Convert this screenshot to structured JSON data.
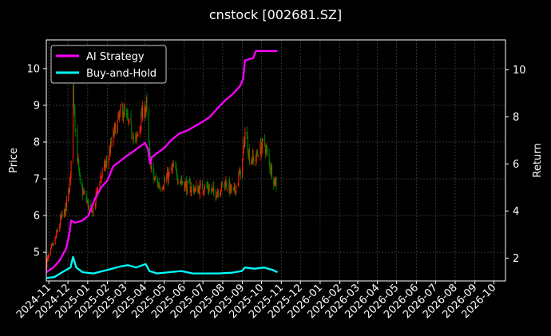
{
  "chart_data": {
    "type": "line",
    "title": "cnstock [002681.SZ]",
    "ylabel": "Price",
    "ylabel_right": "Return",
    "ylim": [
      4.22,
      10.78
    ],
    "ylim_right": [
      1.03,
      11.27
    ],
    "yticks": [
      5,
      6,
      7,
      8,
      9,
      10
    ],
    "yticks_right": [
      2,
      4,
      6,
      8,
      10
    ],
    "xlim": [
      "2024-10-28",
      "2026-10-19"
    ],
    "xticks": [
      "2024-11",
      "2024-12",
      "2025-01",
      "2025-02",
      "2025-03",
      "2025-04",
      "2025-05",
      "2025-06",
      "2025-07",
      "2025-08",
      "2025-09",
      "2025-10",
      "2025-11",
      "2025-12",
      "2026-01",
      "2026-02",
      "2026-03",
      "2026-04",
      "2026-05",
      "2026-06",
      "2026-07",
      "2026-08",
      "2026-09",
      "2026-10"
    ],
    "grid": true,
    "legend_position": "top-left",
    "background": "#000000",
    "candles": {
      "up_color": "#ff2200",
      "down_color": "#008800",
      "price_path": [
        [
          "2024-10-28",
          4.7
        ],
        [
          "2024-11-10",
          5.3
        ],
        [
          "2024-11-20",
          5.9
        ],
        [
          "2024-11-28",
          6.2
        ],
        [
          "2024-12-05",
          7.0
        ],
        [
          "2024-12-09",
          9.5
        ],
        [
          "2024-12-14",
          8.0
        ],
        [
          "2024-12-20",
          6.8
        ],
        [
          "2024-12-28",
          6.5
        ],
        [
          "2025-01-08",
          6.0
        ],
        [
          "2025-01-20",
          7.0
        ],
        [
          "2025-02-01",
          7.5
        ],
        [
          "2025-02-12",
          8.3
        ],
        [
          "2025-02-24",
          8.9
        ],
        [
          "2025-03-06",
          8.5
        ],
        [
          "2025-03-18",
          8.0
        ],
        [
          "2025-03-28",
          8.8
        ],
        [
          "2025-04-03",
          9.0
        ],
        [
          "2025-04-08",
          7.6
        ],
        [
          "2025-04-15",
          7.0
        ],
        [
          "2025-04-25",
          6.8
        ],
        [
          "2025-05-05",
          7.0
        ],
        [
          "2025-05-15",
          7.3
        ],
        [
          "2025-05-25",
          7.0
        ],
        [
          "2025-06-05",
          6.8
        ],
        [
          "2025-06-20",
          6.7
        ],
        [
          "2025-07-05",
          6.8
        ],
        [
          "2025-07-20",
          6.6
        ],
        [
          "2025-08-05",
          6.9
        ],
        [
          "2025-08-18",
          6.6
        ],
        [
          "2025-08-31",
          7.3
        ],
        [
          "2025-09-05",
          8.3
        ],
        [
          "2025-09-12",
          7.6
        ],
        [
          "2025-09-20",
          7.5
        ],
        [
          "2025-09-28",
          7.8
        ],
        [
          "2025-10-05",
          8.0
        ],
        [
          "2025-10-12",
          7.5
        ],
        [
          "2025-10-20",
          7.0
        ],
        [
          "2025-10-26",
          6.8
        ]
      ]
    },
    "series": [
      {
        "name": "AI Strategy",
        "color": "#ff00ff",
        "axis": "right",
        "points": [
          [
            "2024-10-28",
            1.4
          ],
          [
            "2024-11-08",
            1.6
          ],
          [
            "2024-11-18",
            1.9
          ],
          [
            "2024-11-28",
            2.4
          ],
          [
            "2024-12-03",
            3.0
          ],
          [
            "2024-12-06",
            3.6
          ],
          [
            "2024-12-12",
            3.5
          ],
          [
            "2024-12-24",
            3.6
          ],
          [
            "2025-01-02",
            3.8
          ],
          [
            "2025-01-12",
            4.5
          ],
          [
            "2025-01-22",
            5.0
          ],
          [
            "2025-02-01",
            5.3
          ],
          [
            "2025-02-10",
            5.9
          ],
          [
            "2025-02-20",
            6.1
          ],
          [
            "2025-03-01",
            6.3
          ],
          [
            "2025-03-12",
            6.5
          ],
          [
            "2025-03-22",
            6.7
          ],
          [
            "2025-04-01",
            6.9
          ],
          [
            "2025-04-06",
            6.6
          ],
          [
            "2025-04-09",
            6.0
          ],
          [
            "2025-04-12",
            6.3
          ],
          [
            "2025-04-22",
            6.5
          ],
          [
            "2025-05-02",
            6.7
          ],
          [
            "2025-05-12",
            7.0
          ],
          [
            "2025-05-25",
            7.3
          ],
          [
            "2025-06-05",
            7.4
          ],
          [
            "2025-06-18",
            7.6
          ],
          [
            "2025-07-01",
            7.8
          ],
          [
            "2025-07-12",
            8.0
          ],
          [
            "2025-07-25",
            8.4
          ],
          [
            "2025-08-05",
            8.7
          ],
          [
            "2025-08-18",
            9.0
          ],
          [
            "2025-08-28",
            9.3
          ],
          [
            "2025-09-02",
            9.6
          ],
          [
            "2025-09-05",
            10.4
          ],
          [
            "2025-09-18",
            10.5
          ],
          [
            "2025-09-22",
            10.8
          ],
          [
            "2025-10-26",
            10.8
          ]
        ]
      },
      {
        "name": "Buy-and-Hold",
        "color": "#00ffff",
        "axis": "right",
        "points": [
          [
            "2024-10-28",
            1.15
          ],
          [
            "2024-11-10",
            1.2
          ],
          [
            "2024-11-25",
            1.45
          ],
          [
            "2024-12-05",
            1.6
          ],
          [
            "2024-12-09",
            2.05
          ],
          [
            "2024-12-14",
            1.6
          ],
          [
            "2024-12-24",
            1.4
          ],
          [
            "2025-01-10",
            1.35
          ],
          [
            "2025-01-25",
            1.45
          ],
          [
            "2025-02-08",
            1.55
          ],
          [
            "2025-02-22",
            1.65
          ],
          [
            "2025-03-05",
            1.7
          ],
          [
            "2025-03-18",
            1.6
          ],
          [
            "2025-04-02",
            1.75
          ],
          [
            "2025-04-08",
            1.45
          ],
          [
            "2025-04-20",
            1.35
          ],
          [
            "2025-05-08",
            1.4
          ],
          [
            "2025-05-28",
            1.45
          ],
          [
            "2025-06-15",
            1.35
          ],
          [
            "2025-07-05",
            1.35
          ],
          [
            "2025-07-25",
            1.35
          ],
          [
            "2025-08-15",
            1.38
          ],
          [
            "2025-08-31",
            1.45
          ],
          [
            "2025-09-05",
            1.6
          ],
          [
            "2025-09-20",
            1.55
          ],
          [
            "2025-10-05",
            1.6
          ],
          [
            "2025-10-18",
            1.5
          ],
          [
            "2025-10-26",
            1.4
          ]
        ]
      }
    ]
  }
}
